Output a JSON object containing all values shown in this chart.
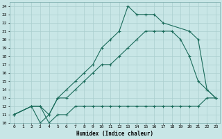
{
  "xlabel": "Humidex (Indice chaleur)",
  "bg_color": "#c8e6e6",
  "line_color": "#1a6b5a",
  "grid_color": "#aacfcf",
  "xlim": [
    -0.5,
    23.5
  ],
  "ylim": [
    10,
    24.5
  ],
  "xticks": [
    0,
    1,
    2,
    3,
    4,
    5,
    6,
    7,
    8,
    9,
    10,
    11,
    12,
    13,
    14,
    15,
    16,
    17,
    18,
    19,
    20,
    21,
    22,
    23
  ],
  "yticks": [
    10,
    11,
    12,
    13,
    14,
    15,
    16,
    17,
    18,
    19,
    20,
    21,
    22,
    23,
    24
  ],
  "line1_x": [
    0,
    2,
    3,
    4,
    5,
    6,
    7,
    8,
    9,
    10,
    11,
    12,
    13,
    14,
    15,
    16,
    17,
    20,
    21,
    22,
    23
  ],
  "line1_y": [
    11,
    12,
    10,
    11,
    13,
    14,
    15,
    16,
    17,
    19,
    20,
    21,
    24,
    23,
    23,
    23,
    22,
    21,
    20,
    14,
    13
  ],
  "line2_x": [
    0,
    2,
    3,
    4,
    5,
    6,
    7,
    8,
    9,
    10,
    11,
    12,
    13,
    14,
    15,
    16,
    17,
    18,
    19,
    20,
    21,
    22,
    23
  ],
  "line2_y": [
    11,
    12,
    12,
    11,
    13,
    13,
    14,
    15,
    16,
    17,
    17,
    18,
    19,
    20,
    21,
    21,
    21,
    21,
    20,
    18,
    15,
    14,
    13
  ],
  "line3_x": [
    0,
    2,
    3,
    4,
    5,
    6,
    7,
    8,
    9,
    10,
    11,
    12,
    13,
    14,
    15,
    16,
    17,
    18,
    19,
    20,
    21,
    22,
    23
  ],
  "line3_y": [
    11,
    12,
    12,
    10,
    11,
    11,
    12,
    12,
    12,
    12,
    12,
    12,
    12,
    12,
    12,
    12,
    12,
    12,
    12,
    12,
    12,
    13,
    13
  ]
}
